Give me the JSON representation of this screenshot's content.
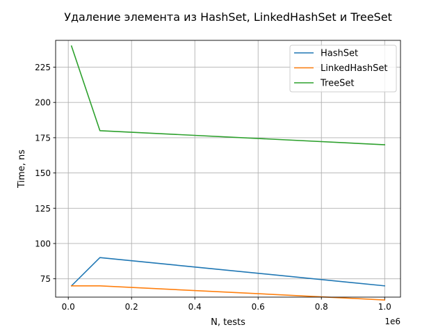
{
  "chart_data": {
    "type": "line",
    "title": "Удаление элемента из HashSet, LinkedHashSet и TreeSet",
    "xlabel": "N, tests",
    "ylabel": "Time, ns",
    "x_offset_label": "1e6",
    "xlim": [
      -40000,
      1050000
    ],
    "ylim": [
      62,
      244
    ],
    "x_ticks": [
      0,
      200000,
      400000,
      600000,
      800000,
      1000000
    ],
    "x_tick_labels": [
      "0.0",
      "0.2",
      "0.4",
      "0.6",
      "0.8",
      "1.0"
    ],
    "y_ticks": [
      75,
      100,
      125,
      150,
      175,
      200,
      225
    ],
    "y_tick_labels": [
      "75",
      "100",
      "125",
      "150",
      "175",
      "200",
      "225"
    ],
    "grid": true,
    "legend_position": "top-right",
    "x": [
      10000,
      100000,
      1000000
    ],
    "series": [
      {
        "name": "HashSet",
        "color": "#1f77b4",
        "values": [
          70,
          90,
          70
        ]
      },
      {
        "name": "LinkedHashSet",
        "color": "#ff7f0e",
        "values": [
          70,
          70,
          60
        ]
      },
      {
        "name": "TreeSet",
        "color": "#2ca02c",
        "values": [
          240,
          180,
          170
        ]
      }
    ]
  }
}
